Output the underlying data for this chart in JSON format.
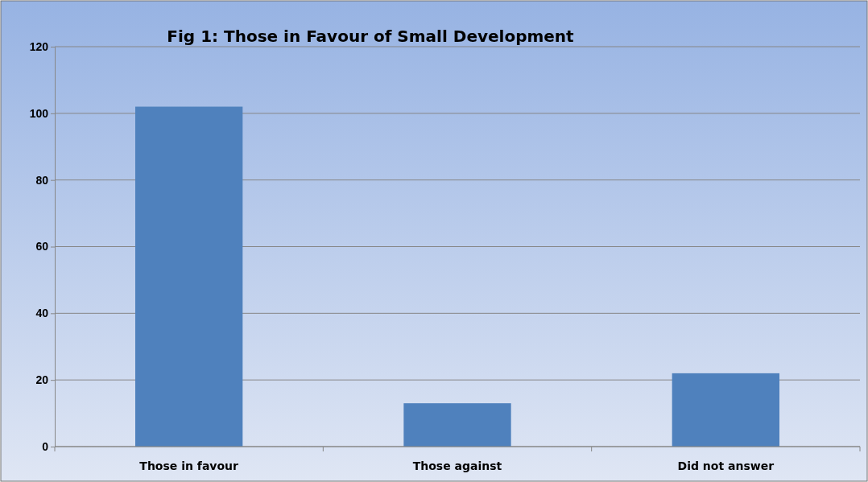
{
  "chart_data": {
    "type": "bar",
    "title": "Fig 1: Those in Favour of Small Development",
    "categories": [
      "Those in favour",
      "Those against",
      "Did not answer"
    ],
    "values": [
      102,
      13,
      22
    ],
    "color": "#4f81bd",
    "ylim": [
      0,
      120
    ],
    "yticks": [
      0,
      20,
      40,
      60,
      80,
      100,
      120
    ],
    "grid": "y"
  }
}
